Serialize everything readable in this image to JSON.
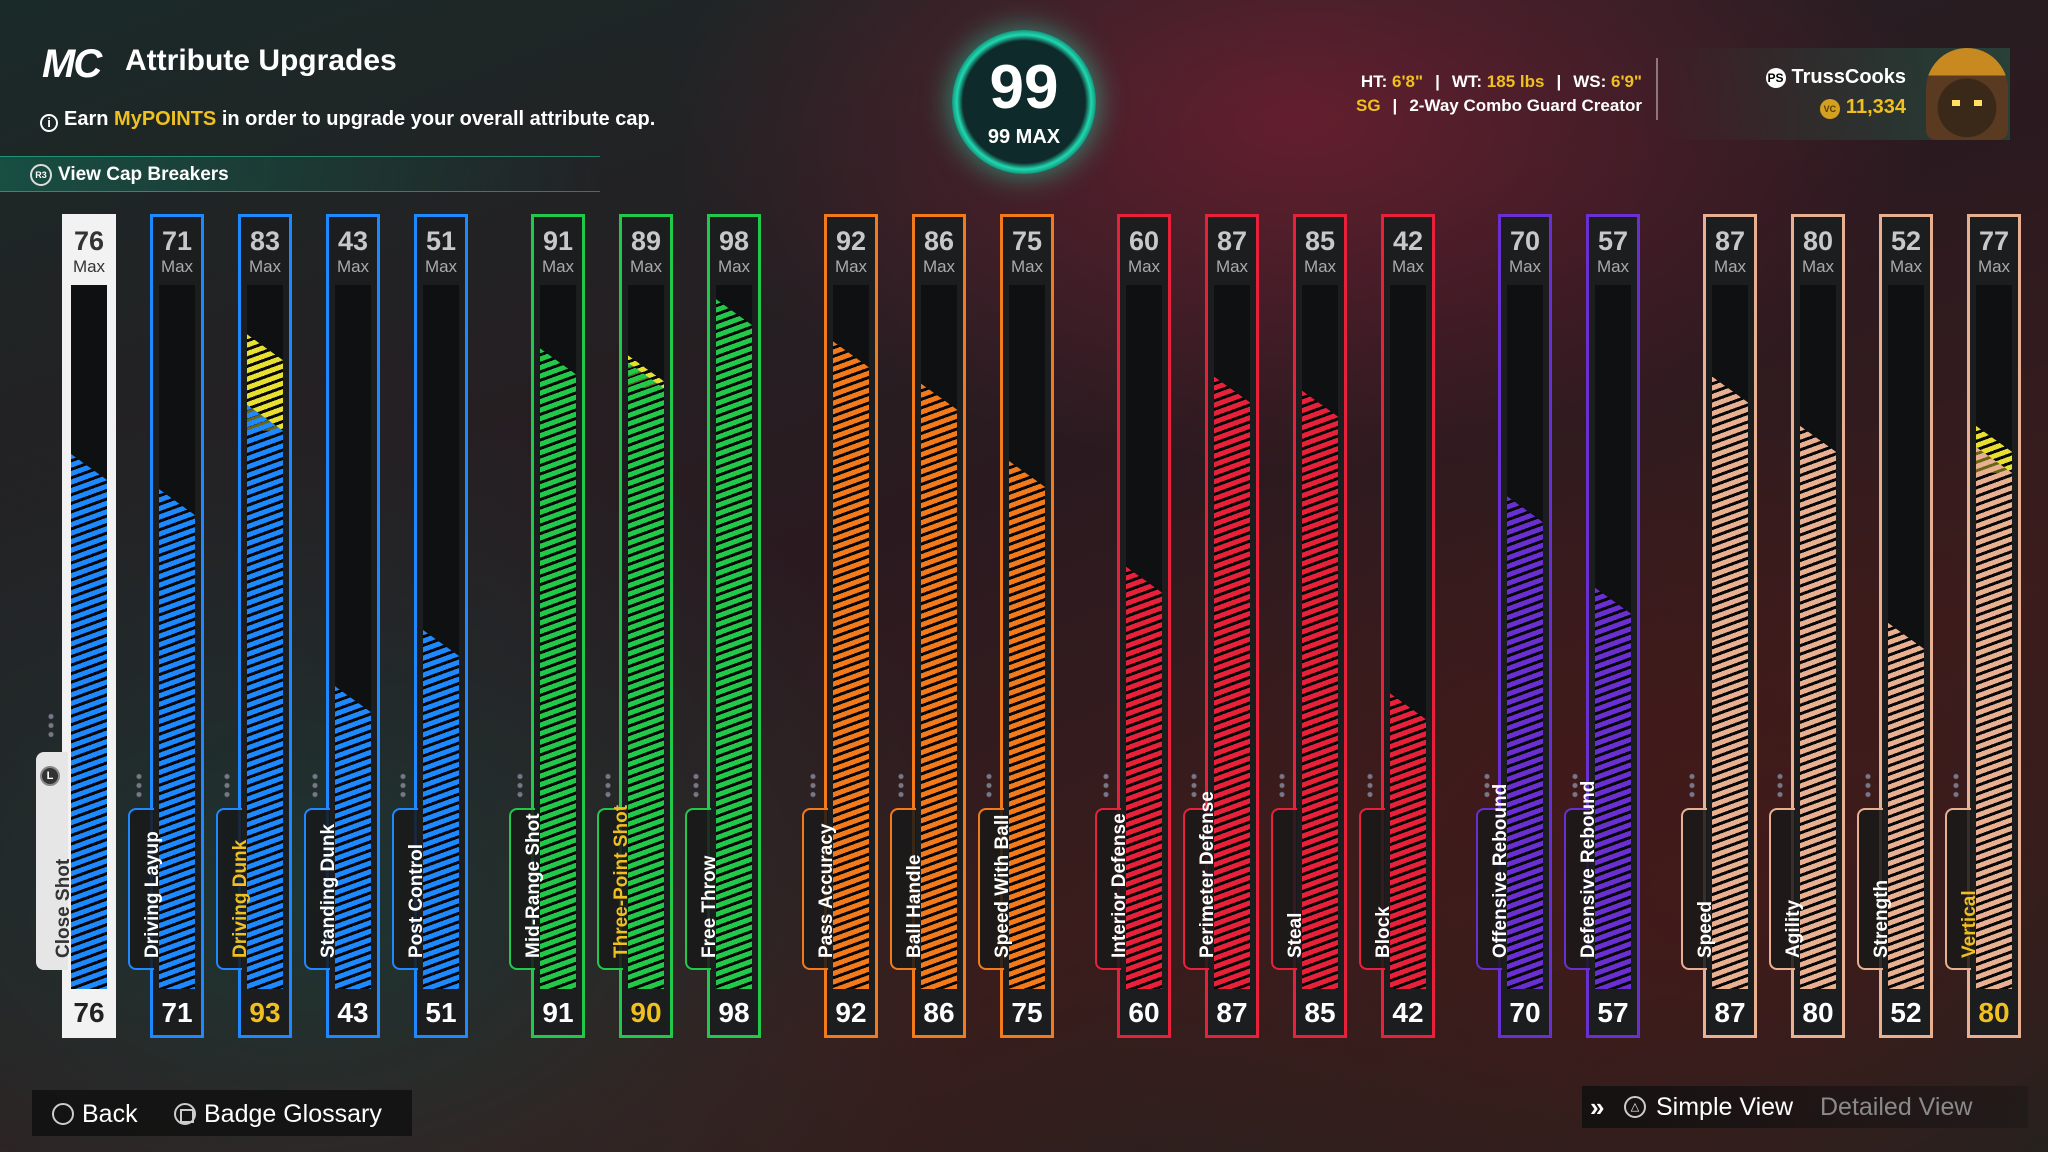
{
  "header": {
    "logo": "MC",
    "title": "Attribute Upgrades",
    "info_prefix": "Earn ",
    "info_highlight": "MyPOINTS",
    "info_suffix": " in order to upgrade your overall attribute cap.",
    "cap_breakers_button_glyph": "R3",
    "cap_breakers_label": "View Cap Breakers"
  },
  "overall": {
    "value": "99",
    "max_label": "99 MAX"
  },
  "player": {
    "ht_label": "HT:",
    "ht_value": "6'8\"",
    "wt_label": "WT:",
    "wt_value": "185 lbs",
    "ws_label": "WS:",
    "ws_value": "6'9\"",
    "position": "SG",
    "archetype": "2-Way Combo Guard Creator",
    "separator": "|"
  },
  "user": {
    "platform_glyph": "PS",
    "name": "TrussCooks",
    "coin_glyph": "VC",
    "vc": "11,334"
  },
  "attributes": [
    {
      "name": "Close Shot",
      "current": "76",
      "max": "76",
      "max_label": "Max",
      "category": "finishing",
      "color": "#1e88ff",
      "selected": true
    },
    {
      "name": "Driving Layup",
      "current": "71",
      "max": "71",
      "max_label": "Max",
      "category": "finishing",
      "color": "#1e88ff"
    },
    {
      "name": "Driving Dunk",
      "current": "93",
      "max": "83",
      "max_label": "Max",
      "category": "finishing",
      "color": "#1e88ff",
      "upgraded": true
    },
    {
      "name": "Standing Dunk",
      "current": "43",
      "max": "43",
      "max_label": "Max",
      "category": "finishing",
      "color": "#1e88ff"
    },
    {
      "name": "Post Control",
      "current": "51",
      "max": "51",
      "max_label": "Max",
      "category": "finishing",
      "color": "#1e88ff"
    },
    {
      "name": "Mid-Range Shot",
      "current": "91",
      "max": "91",
      "max_label": "Max",
      "category": "shooting",
      "color": "#22c84a"
    },
    {
      "name": "Three-Point Shot",
      "current": "90",
      "max": "89",
      "max_label": "Max",
      "category": "shooting",
      "color": "#22c84a",
      "upgraded": true
    },
    {
      "name": "Free Throw",
      "current": "98",
      "max": "98",
      "max_label": "Max",
      "category": "shooting",
      "color": "#22c84a"
    },
    {
      "name": "Pass Accuracy",
      "current": "92",
      "max": "92",
      "max_label": "Max",
      "category": "playmaking",
      "color": "#f27a1a"
    },
    {
      "name": "Ball Handle",
      "current": "86",
      "max": "86",
      "max_label": "Max",
      "category": "playmaking",
      "color": "#f27a1a"
    },
    {
      "name": "Speed With Ball",
      "current": "75",
      "max": "75",
      "max_label": "Max",
      "category": "playmaking",
      "color": "#f27a1a"
    },
    {
      "name": "Interior Defense",
      "current": "60",
      "max": "60",
      "max_label": "Max",
      "category": "defense",
      "color": "#e8203a"
    },
    {
      "name": "Perimeter Defense",
      "current": "87",
      "max": "87",
      "max_label": "Max",
      "category": "defense",
      "color": "#e8203a"
    },
    {
      "name": "Steal",
      "current": "85",
      "max": "85",
      "max_label": "Max",
      "category": "defense",
      "color": "#e8203a"
    },
    {
      "name": "Block",
      "current": "42",
      "max": "42",
      "max_label": "Max",
      "category": "defense",
      "color": "#e8203a"
    },
    {
      "name": "Offensive Rebound",
      "current": "70",
      "max": "70",
      "max_label": "Max",
      "category": "rebounding",
      "color": "#6a2fd0"
    },
    {
      "name": "Defensive Rebound",
      "current": "57",
      "max": "57",
      "max_label": "Max",
      "category": "rebounding",
      "color": "#6a2fd0"
    },
    {
      "name": "Speed",
      "current": "87",
      "max": "87",
      "max_label": "Max",
      "category": "athleticism",
      "color": "#e8b090"
    },
    {
      "name": "Agility",
      "current": "80",
      "max": "80",
      "max_label": "Max",
      "category": "athleticism",
      "color": "#e8b090"
    },
    {
      "name": "Strength",
      "current": "52",
      "max": "52",
      "max_label": "Max",
      "category": "athleticism",
      "color": "#e8b090"
    },
    {
      "name": "Vertical",
      "current": "80",
      "max": "77",
      "max_label": "Max",
      "category": "athleticism",
      "color": "#e8b090",
      "upgraded": true
    }
  ],
  "selected_marker_glyph": "L",
  "footer": {
    "back_label": "Back",
    "glossary_label": "Badge Glossary",
    "simple_view_label": "Simple View",
    "detailed_view_label": "Detailed View"
  }
}
